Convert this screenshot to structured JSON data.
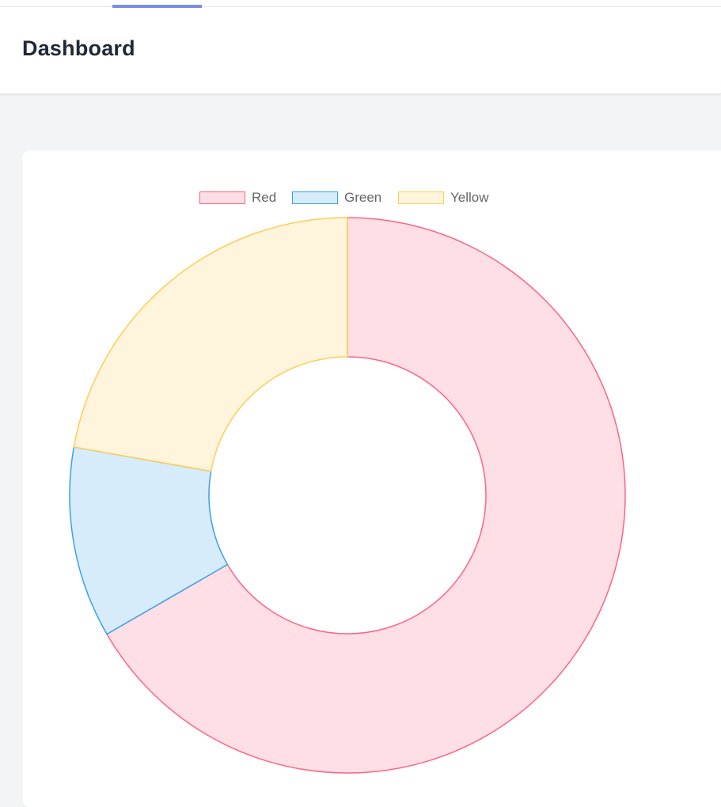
{
  "header": {
    "title": "Dashboard"
  },
  "chart_data": {
    "type": "doughnut",
    "title": "",
    "legend_position": "top",
    "categories": [
      "Red",
      "Green",
      "Yellow"
    ],
    "values": [
      300,
      50,
      100
    ],
    "colors": {
      "border": [
        "#ff6384",
        "#36a2eb",
        "#ffcd56"
      ],
      "fill": [
        "#ffdfe6",
        "#d7ecfa",
        "#fff4dc"
      ]
    }
  },
  "theme": {
    "accent": "#7c8de0",
    "page_bg": "#f3f4f6",
    "card_bg": "#ffffff"
  }
}
